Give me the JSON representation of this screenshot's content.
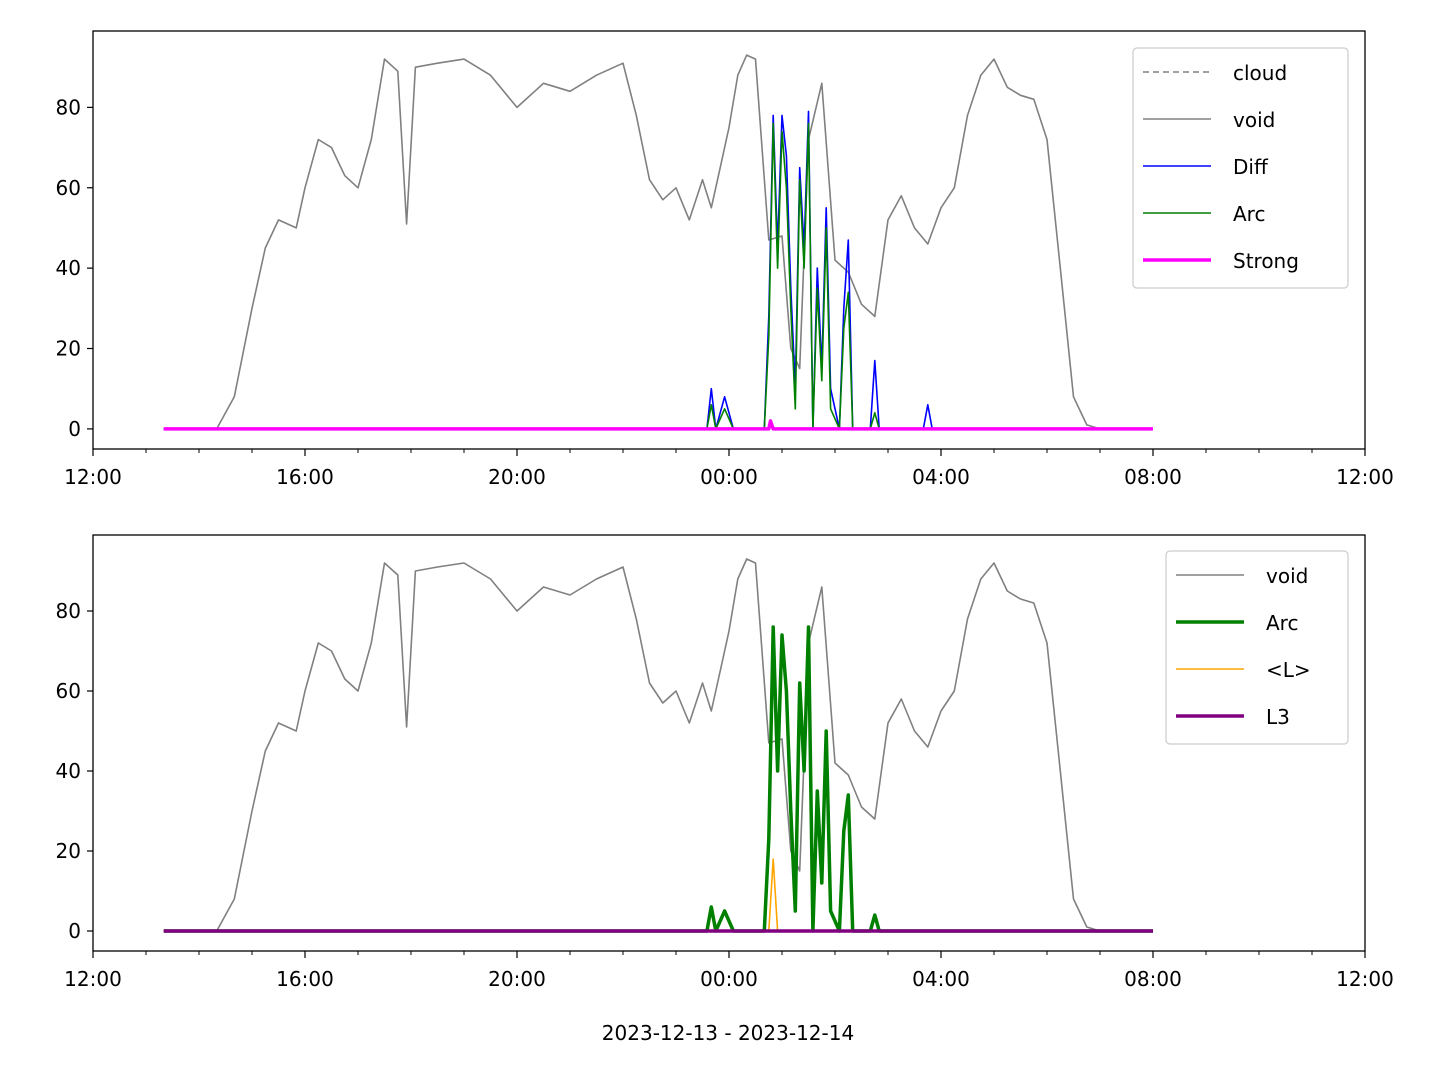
{
  "figure": {
    "xlabel": "2023-12-13 - 2023-12-14"
  },
  "chart_data": [
    {
      "type": "line",
      "x_domain": [
        "2023-12-13T12:00",
        "2023-12-14T12:00"
      ],
      "x_ticks": [
        "12:00",
        "16:00",
        "20:00",
        "00:00",
        "04:00",
        "08:00",
        "12:00"
      ],
      "ylim": [
        -5,
        99
      ],
      "y_ticks": [
        "0",
        "20",
        "40",
        "60",
        "80"
      ],
      "grid": false,
      "legend_position": "top-right",
      "legend": [
        {
          "label": "cloud",
          "color": "#808080",
          "style": "dashed"
        },
        {
          "label": "void",
          "color": "#808080",
          "style": "solid"
        },
        {
          "label": "Diff",
          "color": "#0000ff",
          "style": "solid"
        },
        {
          "label": "Arc",
          "color": "#008000",
          "style": "solid"
        },
        {
          "label": "Strong",
          "color": "#ff00ff",
          "style": "solid-thick"
        }
      ],
      "series": [
        {
          "name": "void",
          "color": "#808080",
          "key": "void"
        },
        {
          "name": "Diff",
          "color": "#0000ff",
          "key": "diff"
        },
        {
          "name": "Arc",
          "color": "#008000",
          "key": "arc"
        },
        {
          "name": "Strong",
          "color": "#ff00ff",
          "key": "strong"
        }
      ]
    },
    {
      "type": "line",
      "x_domain": [
        "2023-12-13T12:00",
        "2023-12-14T12:00"
      ],
      "x_ticks": [
        "12:00",
        "16:00",
        "20:00",
        "00:00",
        "04:00",
        "08:00",
        "12:00"
      ],
      "ylim": [
        -5,
        99
      ],
      "y_ticks": [
        "0",
        "20",
        "40",
        "60",
        "80"
      ],
      "grid": false,
      "legend_position": "top-right",
      "legend": [
        {
          "label": "void",
          "color": "#808080",
          "style": "solid"
        },
        {
          "label": "Arc",
          "color": "#008000",
          "style": "solid-thick"
        },
        {
          "label": "<L>",
          "color": "#ffa500",
          "style": "solid"
        },
        {
          "label": "L3",
          "color": "#800080",
          "style": "solid-thick"
        }
      ],
      "series": [
        {
          "name": "void",
          "color": "#808080",
          "key": "void"
        },
        {
          "name": "Arc",
          "color": "#008000",
          "key": "arc"
        },
        {
          "name": "<L>",
          "color": "#ffa500",
          "key": "l"
        },
        {
          "name": "L3",
          "color": "#800080",
          "key": "l3"
        }
      ]
    }
  ],
  "data": {
    "void": [
      [
        "2023-12-13T13:20",
        0
      ],
      [
        "2023-12-13T14:20",
        0
      ],
      [
        "2023-12-13T14:40",
        8
      ],
      [
        "2023-12-13T15:00",
        30
      ],
      [
        "2023-12-13T15:15",
        45
      ],
      [
        "2023-12-13T15:30",
        52
      ],
      [
        "2023-12-13T15:50",
        50
      ],
      [
        "2023-12-13T16:00",
        60
      ],
      [
        "2023-12-13T16:15",
        72
      ],
      [
        "2023-12-13T16:30",
        70
      ],
      [
        "2023-12-13T16:45",
        63
      ],
      [
        "2023-12-13T17:00",
        60
      ],
      [
        "2023-12-13T17:15",
        72
      ],
      [
        "2023-12-13T17:30",
        92
      ],
      [
        "2023-12-13T17:45",
        89
      ],
      [
        "2023-12-13T17:55",
        51
      ],
      [
        "2023-12-13T18:05",
        90
      ],
      [
        "2023-12-13T18:30",
        91
      ],
      [
        "2023-12-13T19:00",
        92
      ],
      [
        "2023-12-13T19:30",
        88
      ],
      [
        "2023-12-13T20:00",
        80
      ],
      [
        "2023-12-13T20:30",
        86
      ],
      [
        "2023-12-13T21:00",
        84
      ],
      [
        "2023-12-13T21:30",
        88
      ],
      [
        "2023-12-13T22:00",
        91
      ],
      [
        "2023-12-13T22:15",
        78
      ],
      [
        "2023-12-13T22:30",
        62
      ],
      [
        "2023-12-13T22:45",
        57
      ],
      [
        "2023-12-13T23:00",
        60
      ],
      [
        "2023-12-13T23:15",
        52
      ],
      [
        "2023-12-13T23:30",
        62
      ],
      [
        "2023-12-13T23:40",
        55
      ],
      [
        "2023-12-13T23:50",
        65
      ],
      [
        "2023-12-14T00:00",
        75
      ],
      [
        "2023-12-14T00:10",
        88
      ],
      [
        "2023-12-14T00:20",
        93
      ],
      [
        "2023-12-14T00:30",
        92
      ],
      [
        "2023-12-14T00:45",
        47
      ],
      [
        "2023-12-14T01:00",
        48
      ],
      [
        "2023-12-14T01:10",
        20
      ],
      [
        "2023-12-14T01:20",
        15
      ],
      [
        "2023-12-14T01:30",
        72
      ],
      [
        "2023-12-14T01:45",
        86
      ],
      [
        "2023-12-14T02:00",
        42
      ],
      [
        "2023-12-14T02:15",
        39
      ],
      [
        "2023-12-14T02:30",
        31
      ],
      [
        "2023-12-14T02:45",
        28
      ],
      [
        "2023-12-14T03:00",
        52
      ],
      [
        "2023-12-14T03:15",
        58
      ],
      [
        "2023-12-14T03:30",
        50
      ],
      [
        "2023-12-14T03:45",
        46
      ],
      [
        "2023-12-14T04:00",
        55
      ],
      [
        "2023-12-14T04:15",
        60
      ],
      [
        "2023-12-14T04:30",
        78
      ],
      [
        "2023-12-14T04:45",
        88
      ],
      [
        "2023-12-14T05:00",
        92
      ],
      [
        "2023-12-14T05:15",
        85
      ],
      [
        "2023-12-14T05:30",
        83
      ],
      [
        "2023-12-14T05:45",
        82
      ],
      [
        "2023-12-14T06:00",
        72
      ],
      [
        "2023-12-14T06:15",
        40
      ],
      [
        "2023-12-14T06:30",
        8
      ],
      [
        "2023-12-14T06:45",
        1
      ],
      [
        "2023-12-14T07:00",
        0
      ],
      [
        "2023-12-14T08:00",
        0
      ]
    ],
    "diff": [
      [
        "2023-12-13T13:20",
        0
      ],
      [
        "2023-12-13T23:35",
        0
      ],
      [
        "2023-12-13T23:40",
        10
      ],
      [
        "2023-12-13T23:45",
        0
      ],
      [
        "2023-12-13T23:55",
        8
      ],
      [
        "2023-12-14T00:05",
        0
      ],
      [
        "2023-12-14T00:40",
        0
      ],
      [
        "2023-12-14T00:45",
        28
      ],
      [
        "2023-12-14T00:50",
        78
      ],
      [
        "2023-12-14T00:55",
        45
      ],
      [
        "2023-12-14T01:00",
        78
      ],
      [
        "2023-12-14T01:05",
        68
      ],
      [
        "2023-12-14T01:10",
        35
      ],
      [
        "2023-12-14T01:15",
        10
      ],
      [
        "2023-12-14T01:20",
        65
      ],
      [
        "2023-12-14T01:25",
        45
      ],
      [
        "2023-12-14T01:30",
        79
      ],
      [
        "2023-12-14T01:35",
        0
      ],
      [
        "2023-12-14T01:40",
        40
      ],
      [
        "2023-12-14T01:45",
        15
      ],
      [
        "2023-12-14T01:50",
        55
      ],
      [
        "2023-12-14T01:55",
        10
      ],
      [
        "2023-12-14T02:05",
        0
      ],
      [
        "2023-12-14T02:10",
        30
      ],
      [
        "2023-12-14T02:15",
        47
      ],
      [
        "2023-12-14T02:20",
        0
      ],
      [
        "2023-12-14T02:40",
        0
      ],
      [
        "2023-12-14T02:45",
        17
      ],
      [
        "2023-12-14T02:50",
        0
      ],
      [
        "2023-12-14T03:40",
        0
      ],
      [
        "2023-12-14T03:45",
        6
      ],
      [
        "2023-12-14T03:50",
        0
      ],
      [
        "2023-12-14T08:00",
        0
      ]
    ],
    "arc": [
      [
        "2023-12-13T13:20",
        0
      ],
      [
        "2023-12-13T23:35",
        0
      ],
      [
        "2023-12-13T23:40",
        6
      ],
      [
        "2023-12-13T23:45",
        0
      ],
      [
        "2023-12-13T23:55",
        5
      ],
      [
        "2023-12-14T00:05",
        0
      ],
      [
        "2023-12-14T00:40",
        0
      ],
      [
        "2023-12-14T00:45",
        23
      ],
      [
        "2023-12-14T00:50",
        76
      ],
      [
        "2023-12-14T00:55",
        40
      ],
      [
        "2023-12-14T01:00",
        74
      ],
      [
        "2023-12-14T01:05",
        60
      ],
      [
        "2023-12-14T01:10",
        30
      ],
      [
        "2023-12-14T01:15",
        5
      ],
      [
        "2023-12-14T01:20",
        62
      ],
      [
        "2023-12-14T01:25",
        40
      ],
      [
        "2023-12-14T01:30",
        76
      ],
      [
        "2023-12-14T01:35",
        0
      ],
      [
        "2023-12-14T01:40",
        35
      ],
      [
        "2023-12-14T01:45",
        12
      ],
      [
        "2023-12-14T01:50",
        50
      ],
      [
        "2023-12-14T01:55",
        5
      ],
      [
        "2023-12-14T02:05",
        0
      ],
      [
        "2023-12-14T02:10",
        25
      ],
      [
        "2023-12-14T02:15",
        34
      ],
      [
        "2023-12-14T02:20",
        0
      ],
      [
        "2023-12-14T02:40",
        0
      ],
      [
        "2023-12-14T02:45",
        4
      ],
      [
        "2023-12-14T02:50",
        0
      ],
      [
        "2023-12-14T08:00",
        0
      ]
    ],
    "strong": [
      [
        "2023-12-13T13:20",
        0
      ],
      [
        "2023-12-14T00:45",
        0
      ],
      [
        "2023-12-14T00:47",
        2
      ],
      [
        "2023-12-14T00:50",
        0
      ],
      [
        "2023-12-14T08:00",
        0
      ]
    ],
    "l": [
      [
        "2023-12-13T13:20",
        0
      ],
      [
        "2023-12-14T00:45",
        0
      ],
      [
        "2023-12-14T00:50",
        18
      ],
      [
        "2023-12-14T00:55",
        0
      ],
      [
        "2023-12-14T08:00",
        0
      ]
    ],
    "l3": [
      [
        "2023-12-13T13:20",
        0
      ],
      [
        "2023-12-14T08:00",
        0
      ]
    ]
  }
}
